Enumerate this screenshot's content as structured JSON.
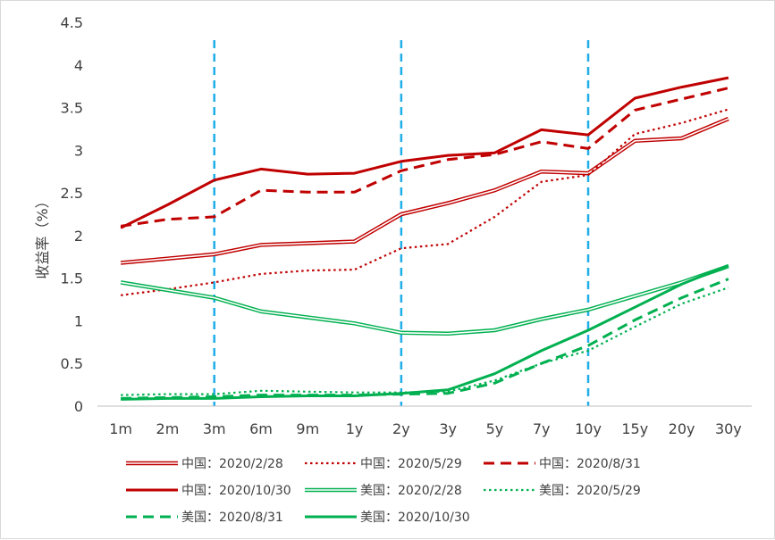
{
  "chart_data": {
    "type": "line",
    "title": "",
    "xlabel": "",
    "ylabel": "收益率（%）",
    "ylim": [
      0,
      4.5
    ],
    "yticks": [
      "0",
      "0.5",
      "1",
      "1.5",
      "2",
      "2.5",
      "3",
      "3.5",
      "4",
      "4.5"
    ],
    "categories": [
      "1m",
      "2m",
      "3m",
      "6m",
      "9m",
      "1y",
      "2y",
      "3y",
      "5y",
      "7y",
      "10y",
      "15y",
      "20y",
      "30y"
    ],
    "grid": false,
    "legend_position": "bottom",
    "reference_lines": {
      "type": "vertical-dashed",
      "color": "#1faee8",
      "at": [
        "3m",
        "2y",
        "10y"
      ]
    },
    "series": [
      {
        "name": "中国：2020/2/28",
        "color": "#c00000",
        "style": "double",
        "values": [
          1.68,
          1.73,
          1.78,
          1.89,
          1.91,
          1.93,
          2.25,
          2.38,
          2.53,
          2.75,
          2.73,
          3.11,
          3.14,
          3.37
        ]
      },
      {
        "name": "中国：2020/5/29",
        "color": "#c00000",
        "style": "dotted",
        "values": [
          1.3,
          1.37,
          1.45,
          1.55,
          1.59,
          1.6,
          1.85,
          1.9,
          2.22,
          2.63,
          2.71,
          3.19,
          3.32,
          3.48
        ]
      },
      {
        "name": "中国：2020/8/31",
        "color": "#c00000",
        "style": "dashed",
        "values": [
          2.11,
          2.19,
          2.22,
          2.53,
          2.51,
          2.51,
          2.76,
          2.89,
          2.95,
          3.1,
          3.02,
          3.47,
          3.6,
          3.73
        ]
      },
      {
        "name": "中国：2020/10/30",
        "color": "#c00000",
        "style": "solid",
        "values": [
          2.09,
          2.36,
          2.65,
          2.78,
          2.72,
          2.73,
          2.87,
          2.94,
          2.97,
          3.24,
          3.18,
          3.61,
          3.74,
          3.85
        ]
      },
      {
        "name": "美国：2020/2/28",
        "color": "#00b050",
        "style": "double",
        "values": [
          1.45,
          1.36,
          1.27,
          1.11,
          1.04,
          0.97,
          0.86,
          0.85,
          0.89,
          1.02,
          1.13,
          1.29,
          1.45,
          1.64
        ]
      },
      {
        "name": "美国：2020/5/29",
        "color": "#00b050",
        "style": "dotted",
        "values": [
          0.13,
          0.14,
          0.14,
          0.18,
          0.17,
          0.16,
          0.16,
          0.17,
          0.3,
          0.5,
          0.65,
          0.93,
          1.2,
          1.39
        ]
      },
      {
        "name": "美国：2020/8/31",
        "color": "#00b050",
        "style": "dashed",
        "values": [
          0.09,
          0.1,
          0.11,
          0.13,
          0.13,
          0.13,
          0.14,
          0.15,
          0.27,
          0.5,
          0.71,
          1.01,
          1.27,
          1.49
        ]
      },
      {
        "name": "美国：2020/10/30",
        "color": "#00b050",
        "style": "solid",
        "values": [
          0.08,
          0.09,
          0.09,
          0.11,
          0.12,
          0.12,
          0.15,
          0.19,
          0.38,
          0.65,
          0.89,
          1.16,
          1.43,
          1.65
        ]
      }
    ]
  }
}
